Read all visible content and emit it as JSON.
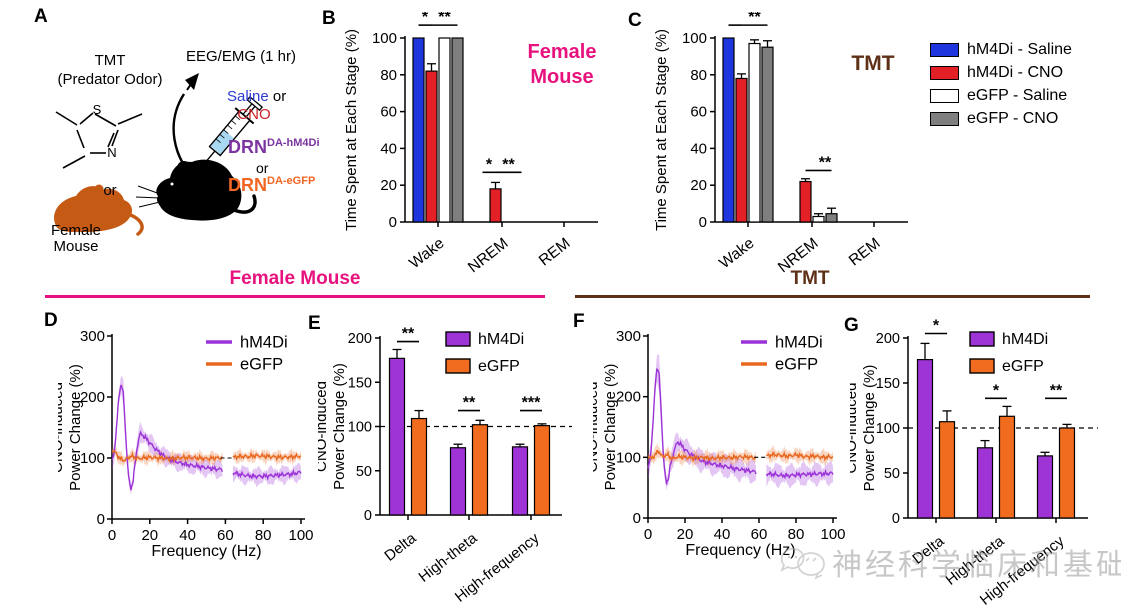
{
  "figure": {
    "panel_labels": {
      "A": "A",
      "B": "B",
      "C": "C",
      "D": "D",
      "E": "E",
      "F": "F",
      "G": "G"
    },
    "colors": {
      "blue": "#1f35dd",
      "red": "#e32026",
      "white": "#ffffff",
      "gray": "#7f7f7f",
      "purple": "#9e33d6",
      "orange": "#f16c1f",
      "pink": "#e8127e",
      "brown": "#5e3017",
      "saline_blue": "#2a3bd0",
      "cno_red": "#cc2127",
      "drn_purple": "#7c35a0",
      "drn_orange": "#f26522",
      "mouse_orange": "#c55a14",
      "syringe_blue": "#a9d9f2"
    }
  },
  "panelA": {
    "tmt_line1": "TMT",
    "tmt_line2": "(Predator Odor)",
    "or_top": "or",
    "female_line1": "Female",
    "female_line2": "Mouse",
    "eeg": "EEG/EMG (1 hr)",
    "saline": "Saline",
    "or_mid": " or",
    "cno": "CNO",
    "drn1": "DRN",
    "drn1_sup": "DA-hM4Di",
    "or_bottom": "or",
    "drn2": "DRN",
    "drn2_sup": "DA-eGFP"
  },
  "headers": {
    "left": "Female Mouse",
    "right": "TMT"
  },
  "legend": {
    "items": [
      {
        "label": "hM4Di - Saline",
        "color": "#1f35dd"
      },
      {
        "label": "hM4Di - CNO",
        "color": "#e32026"
      },
      {
        "label": "eGFP - Saline",
        "color": "#ffffff"
      },
      {
        "label": "eGFP - CNO",
        "color": "#7f7f7f"
      }
    ]
  },
  "watermark": {
    "text": "神经科学临床和基础"
  },
  "chart_data": [
    {
      "id": "B",
      "type": "grouped_bar",
      "title_lines": [
        "Female",
        "Mouse"
      ],
      "title_color": "#e8127e",
      "ylabel": "Time Spent at Each Stage (%)",
      "ylim": [
        0,
        100
      ],
      "yticks": [
        0,
        20,
        40,
        60,
        80,
        100
      ],
      "categories": [
        "Wake",
        "NREM",
        "REM"
      ],
      "series": [
        {
          "name": "hM4Di - Saline",
          "color": "#1f35dd",
          "values": [
            100,
            0,
            0
          ],
          "sem": [
            0,
            0,
            0
          ]
        },
        {
          "name": "hM4Di - CNO",
          "color": "#e32026",
          "values": [
            82,
            18,
            0
          ],
          "sem": [
            4,
            3.5,
            0
          ]
        },
        {
          "name": "eGFP - Saline",
          "color": "#ffffff",
          "values": [
            100,
            0,
            0
          ],
          "sem": [
            0,
            0,
            0
          ]
        },
        {
          "name": "eGFP - CNO",
          "color": "#7f7f7f",
          "values": [
            100,
            0,
            0
          ],
          "sem": [
            0,
            0,
            0
          ]
        }
      ],
      "significance": [
        {
          "category": "Wake",
          "bars": [
            0,
            1
          ],
          "label": "*",
          "y": 107
        },
        {
          "category": "Wake",
          "bars": [
            1,
            3
          ],
          "label": "**",
          "y": 107
        },
        {
          "category": "NREM",
          "bars": [
            0,
            1
          ],
          "label": "*",
          "y": 27
        },
        {
          "category": "NREM",
          "bars": [
            1,
            3
          ],
          "label": "**",
          "y": 27
        }
      ]
    },
    {
      "id": "C",
      "type": "grouped_bar",
      "title_lines": [
        "TMT"
      ],
      "title_color": "#5e3017",
      "ylabel": "Time Spent at Each Stage (%)",
      "ylim": [
        0,
        100
      ],
      "yticks": [
        0,
        20,
        40,
        60,
        80,
        100
      ],
      "categories": [
        "Wake",
        "NREM",
        "REM"
      ],
      "series": [
        {
          "name": "hM4Di - Saline",
          "color": "#1f35dd",
          "values": [
            100,
            0,
            0
          ],
          "sem": [
            0,
            0,
            0
          ]
        },
        {
          "name": "hM4Di - CNO",
          "color": "#e32026",
          "values": [
            78,
            22,
            0
          ],
          "sem": [
            2.5,
            1.5,
            0
          ]
        },
        {
          "name": "eGFP - Saline",
          "color": "#ffffff",
          "values": [
            97,
            3,
            0
          ],
          "sem": [
            2,
            1.5,
            0
          ]
        },
        {
          "name": "eGFP - CNO",
          "color": "#7f7f7f",
          "values": [
            95,
            4.5,
            0
          ],
          "sem": [
            3.5,
            3,
            0
          ]
        }
      ],
      "significance": [
        {
          "category": "Wake",
          "bars": [
            0,
            1
          ],
          "label": "",
          "y": 107
        },
        {
          "category": "Wake",
          "bars": [
            1,
            3
          ],
          "label": "**",
          "y": 107
        },
        {
          "category": "NREM",
          "bars": [
            1,
            2
          ],
          "label": "",
          "y": 28
        },
        {
          "category": "NREM",
          "bars": [
            2,
            3
          ],
          "label": "**",
          "y": 28
        }
      ]
    },
    {
      "id": "D",
      "type": "line",
      "xlabel": "Frequency (Hz)",
      "ylabel_lines": [
        "CNO-induced",
        "Power Change (%)"
      ],
      "xlim": [
        0,
        100
      ],
      "ylim": [
        0,
        300
      ],
      "xticks": [
        0,
        20,
        40,
        60,
        80,
        100
      ],
      "yticks": [
        0,
        100,
        200,
        300
      ],
      "axis_break": {
        "from": 58.5,
        "to": 64,
        "bridge_y": 100
      },
      "legend": [
        "hM4Di",
        "eGFP"
      ],
      "series": [
        {
          "name": "hM4Di",
          "color": "#9b33d8",
          "band": 14,
          "anchors": [
            [
              0,
              95
            ],
            [
              1,
              105
            ],
            [
              2,
              135
            ],
            [
              3,
              175
            ],
            [
              4,
              210
            ],
            [
              5,
              222
            ],
            [
              6,
              205
            ],
            [
              7,
              150
            ],
            [
              8,
              100
            ],
            [
              9,
              62
            ],
            [
              10,
              50
            ],
            [
              11,
              60
            ],
            [
              12,
              85
            ],
            [
              13,
              110
            ],
            [
              14,
              130
            ],
            [
              15,
              140
            ],
            [
              16,
              138
            ],
            [
              18,
              132
            ],
            [
              20,
              125
            ],
            [
              22,
              118
            ],
            [
              24,
              112
            ],
            [
              26,
              107
            ],
            [
              28,
              102
            ],
            [
              30,
              99
            ],
            [
              33,
              95
            ],
            [
              36,
              92
            ],
            [
              40,
              89
            ],
            [
              44,
              87
            ],
            [
              48,
              85
            ],
            [
              52,
              83
            ],
            [
              55,
              82
            ],
            [
              58.5,
              81
            ],
            [
              64,
              76
            ],
            [
              68,
              73
            ],
            [
              72,
              71
            ],
            [
              76,
              70
            ],
            [
              80,
              70
            ],
            [
              84,
              71
            ],
            [
              88,
              72
            ],
            [
              92,
              73
            ],
            [
              96,
              74
            ],
            [
              100,
              77
            ]
          ]
        },
        {
          "name": "eGFP",
          "color": "#e8681f",
          "band": 10,
          "anchors": [
            [
              0,
              114
            ],
            [
              2,
              108
            ],
            [
              4,
              100
            ],
            [
              6,
              96
            ],
            [
              8,
              99
            ],
            [
              10,
              103
            ],
            [
              12,
              101
            ],
            [
              14,
              99
            ],
            [
              16,
              100
            ],
            [
              20,
              101
            ],
            [
              25,
              100
            ],
            [
              30,
              99
            ],
            [
              35,
              100
            ],
            [
              40,
              101
            ],
            [
              45,
              100
            ],
            [
              50,
              99
            ],
            [
              55,
              100
            ],
            [
              58.5,
              100
            ],
            [
              64,
              101
            ],
            [
              68,
              103
            ],
            [
              72,
              102
            ],
            [
              76,
              104
            ],
            [
              80,
              103
            ],
            [
              85,
              102
            ],
            [
              90,
              101
            ],
            [
              95,
              102
            ],
            [
              100,
              103
            ]
          ]
        }
      ]
    },
    {
      "id": "E",
      "type": "grouped_bar",
      "ylabel_lines": [
        "CNO-induced",
        "Power Change (%)"
      ],
      "ylim": [
        0,
        200
      ],
      "yticks": [
        0,
        50,
        100,
        150,
        200
      ],
      "hline": 100,
      "categories": [
        "Delta",
        "High-theta",
        "High-frequency"
      ],
      "legend": [
        "hM4Di",
        "eGFP"
      ],
      "series": [
        {
          "name": "hM4Di",
          "color": "#9e33d6",
          "values": [
            177,
            76,
            77
          ],
          "sem": [
            10,
            4,
            3
          ]
        },
        {
          "name": "eGFP",
          "color": "#f16c1f",
          "values": [
            109,
            102,
            101
          ],
          "sem": [
            9,
            5,
            2
          ]
        }
      ],
      "significance": [
        {
          "category": "Delta",
          "bars": [
            0,
            1
          ],
          "label": "**",
          "y": 196
        },
        {
          "category": "High-theta",
          "bars": [
            0,
            1
          ],
          "label": "**",
          "y": 118
        },
        {
          "category": "High-frequency",
          "bars": [
            0,
            1
          ],
          "label": "***",
          "y": 118
        }
      ]
    },
    {
      "id": "F",
      "type": "line",
      "xlabel": "Frequency (Hz)",
      "ylabel_lines": [
        "CNO-induced",
        "Power Change (%)"
      ],
      "xlim": [
        0,
        100
      ],
      "ylim": [
        0,
        300
      ],
      "xticks": [
        0,
        20,
        40,
        60,
        80,
        100
      ],
      "yticks": [
        0,
        100,
        200,
        300
      ],
      "axis_break": {
        "from": 58.5,
        "to": 64,
        "bridge_y": 100
      },
      "legend": [
        "hM4Di",
        "eGFP"
      ],
      "series": [
        {
          "name": "hM4Di",
          "color": "#9b33d8",
          "band": 18,
          "anchors": [
            [
              0,
              80
            ],
            [
              1,
              95
            ],
            [
              2,
              125
            ],
            [
              3,
              170
            ],
            [
              4,
              225
            ],
            [
              5,
              250
            ],
            [
              6,
              235
            ],
            [
              7,
              185
            ],
            [
              8,
              120
            ],
            [
              9,
              75
            ],
            [
              10,
              58
            ],
            [
              11,
              65
            ],
            [
              12,
              85
            ],
            [
              14,
              110
            ],
            [
              16,
              126
            ],
            [
              18,
              120
            ],
            [
              20,
              113
            ],
            [
              22,
              107
            ],
            [
              25,
              101
            ],
            [
              28,
              96
            ],
            [
              30,
              93
            ],
            [
              34,
              90
            ],
            [
              38,
              87
            ],
            [
              42,
              85
            ],
            [
              46,
              82
            ],
            [
              50,
              80
            ],
            [
              54,
              78
            ],
            [
              58.5,
              76
            ],
            [
              64,
              73
            ],
            [
              68,
              72
            ],
            [
              72,
              70
            ],
            [
              76,
              70
            ],
            [
              80,
              71
            ],
            [
              84,
              72
            ],
            [
              88,
              72
            ],
            [
              92,
              73
            ],
            [
              96,
              73
            ],
            [
              100,
              74
            ]
          ]
        },
        {
          "name": "eGFP",
          "color": "#e8681f",
          "band": 11,
          "anchors": [
            [
              0,
              103
            ],
            [
              2,
              97
            ],
            [
              4,
              106
            ],
            [
              6,
              110
            ],
            [
              8,
              100
            ],
            [
              10,
              105
            ],
            [
              12,
              100
            ],
            [
              14,
              98
            ],
            [
              16,
              101
            ],
            [
              20,
              100
            ],
            [
              25,
              99
            ],
            [
              30,
              100
            ],
            [
              35,
              98
            ],
            [
              40,
              100
            ],
            [
              45,
              99
            ],
            [
              50,
              101
            ],
            [
              55,
              100
            ],
            [
              58.5,
              99
            ],
            [
              64,
              102
            ],
            [
              68,
              105
            ],
            [
              72,
              103
            ],
            [
              76,
              102
            ],
            [
              80,
              104
            ],
            [
              85,
              101
            ],
            [
              90,
              102
            ],
            [
              95,
              100
            ],
            [
              100,
              101
            ]
          ]
        }
      ]
    },
    {
      "id": "G",
      "type": "grouped_bar",
      "ylabel_lines": [
        "CNO-induced",
        "Power Change (%)"
      ],
      "ylim": [
        0,
        200
      ],
      "yticks": [
        0,
        50,
        100,
        150,
        200
      ],
      "hline": 100,
      "categories": [
        "Delta",
        "High-theta",
        "High-frequency"
      ],
      "legend": [
        "hM4Di",
        "eGFP"
      ],
      "series": [
        {
          "name": "hM4Di",
          "color": "#9e33d6",
          "values": [
            176,
            78,
            69
          ],
          "sem": [
            18,
            8,
            4
          ]
        },
        {
          "name": "eGFP",
          "color": "#f16c1f",
          "values": [
            107,
            113,
            100
          ],
          "sem": [
            12,
            11,
            4
          ]
        }
      ],
      "significance": [
        {
          "category": "Delta",
          "bars": [
            0,
            1
          ],
          "label": "*",
          "y": 205
        },
        {
          "category": "High-theta",
          "bars": [
            0,
            1
          ],
          "label": "*",
          "y": 133
        },
        {
          "category": "High-frequency",
          "bars": [
            0,
            1
          ],
          "label": "**",
          "y": 133
        }
      ]
    }
  ]
}
